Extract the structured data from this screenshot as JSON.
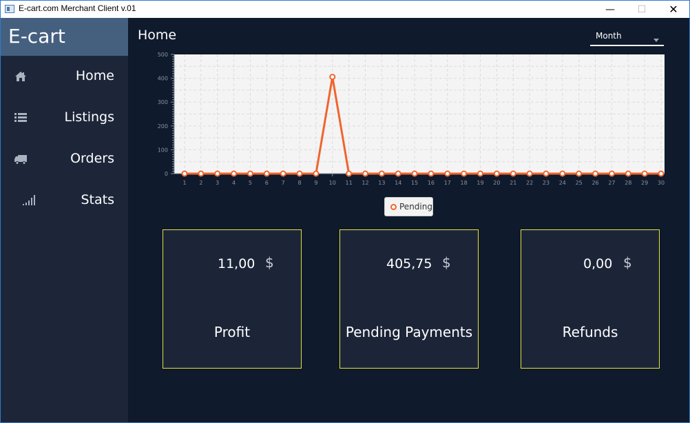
{
  "window": {
    "title": "E-cart.com Merchant Client v.01",
    "min_glyph": "—",
    "max_glyph": "☐",
    "close_glyph": "✕"
  },
  "sidebar": {
    "brand": "E-cart",
    "items": [
      {
        "label": "Home",
        "icon": "home-icon"
      },
      {
        "label": "Listings",
        "icon": "list-icon"
      },
      {
        "label": "Orders",
        "icon": "truck-icon"
      },
      {
        "label": "Stats",
        "icon": "signal-bars-icon"
      }
    ]
  },
  "main": {
    "title": "Home",
    "period_select": {
      "value": "Month"
    }
  },
  "chart_data": {
    "type": "line",
    "x": [
      1,
      2,
      3,
      4,
      5,
      6,
      7,
      8,
      9,
      10,
      11,
      12,
      13,
      14,
      15,
      16,
      17,
      18,
      19,
      20,
      21,
      22,
      23,
      24,
      25,
      26,
      27,
      28,
      29,
      30
    ],
    "series": [
      {
        "name": "Pending",
        "values": [
          0,
          0,
          0,
          0,
          0,
          0,
          0,
          0,
          0,
          405.75,
          0,
          0,
          0,
          0,
          0,
          0,
          0,
          0,
          0,
          0,
          0,
          0,
          0,
          0,
          0,
          0,
          0,
          0,
          0,
          0
        ]
      }
    ],
    "ylim": [
      0,
      500
    ],
    "yticks": [
      0,
      100,
      200,
      300,
      400,
      500
    ],
    "grid": true,
    "legend": "bottom-center",
    "colors": {
      "line": "#f0642d",
      "plot_bg": "#f4f4f4",
      "grid": "#dcdcdc"
    }
  },
  "cards": [
    {
      "amount": "11,00",
      "currency": "$",
      "caption": "Profit"
    },
    {
      "amount": "405,75",
      "currency": "$",
      "caption": "Pending Payments"
    },
    {
      "amount": "0,00",
      "currency": "$",
      "caption": "Refunds"
    }
  ],
  "colors": {
    "background": "#0f1a2c",
    "sidebar": "#1d2639",
    "brand": "#45607f",
    "card_border": "#e7e23a",
    "accent": "#f0642d"
  }
}
